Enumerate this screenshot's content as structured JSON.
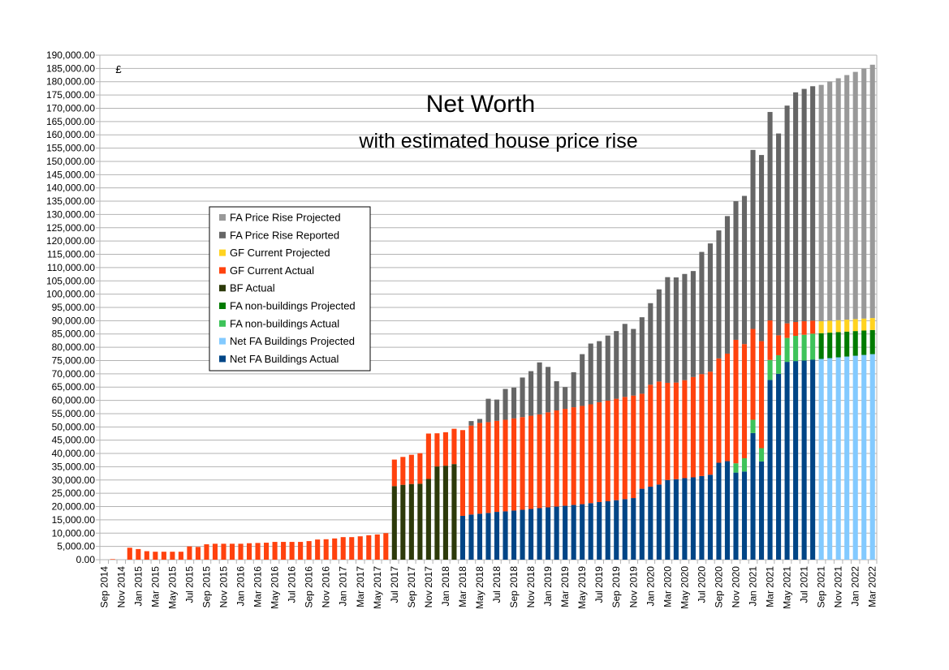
{
  "chart_data": {
    "type": "bar",
    "stacked": true,
    "title": "Net Worth",
    "subtitle": "with estimated house price rise",
    "ylabel": "£",
    "ylim": [
      0,
      190000
    ],
    "ytick_step": 5000,
    "grid": true,
    "legend_position": "left-middle",
    "categories": [
      "Sep 2014",
      "Oct 2014",
      "Nov 2014",
      "Dec 2014",
      "Jan 2015",
      "Feb 2015",
      "Mar 2015",
      "Apr 2015",
      "May 2015",
      "Jun 2015",
      "Jul 2015",
      "Aug 2015",
      "Sep 2015",
      "Oct 2015",
      "Nov 2015",
      "Dec 2015",
      "Jan 2016",
      "Feb 2016",
      "Mar 2016",
      "Apr 2016",
      "May 2016",
      "Jun 2016",
      "Jul 2016",
      "Aug 2016",
      "Sep 2016",
      "Oct 2016",
      "Nov 2016",
      "Dec 2016",
      "Jan 2017",
      "Feb 2017",
      "Mar 2017",
      "Apr 2017",
      "May 2017",
      "Jun 2017",
      "Jul 2017",
      "Aug 2017",
      "Sep 2017",
      "Oct 2017",
      "Nov 2017",
      "Dec 2017",
      "Jan 2018",
      "Feb 2018",
      "Mar 2018",
      "Apr 2018",
      "May 2018",
      "Jun 2018",
      "Jul 2018",
      "Aug 2018",
      "Sep 2018",
      "Oct 2018",
      "Nov 2018",
      "Dec 2018",
      "Jan 2019",
      "Feb 2019",
      "Mar 2019",
      "Apr 2019",
      "May 2019",
      "Jun 2019",
      "Jul 2019",
      "Aug 2019",
      "Sep 2019",
      "Oct 2019",
      "Nov 2019",
      "Dec 2019",
      "Jan 2020",
      "Feb 2020",
      "Mar 2020",
      "Apr 2020",
      "May 2020",
      "Jun 2020",
      "Jul 2020",
      "Aug 2020",
      "Sep 2020",
      "Oct 2020",
      "Nov 2020",
      "Dec 2020",
      "Jan 2021",
      "Feb 2021",
      "Mar 2021",
      "Apr 2021",
      "May 2021",
      "Jun 2021",
      "Jul 2021",
      "Aug 2021",
      "Sep 2021",
      "Oct 2021",
      "Nov 2021",
      "Dec 2021",
      "Jan 2022",
      "Feb 2022",
      "Mar 2022"
    ],
    "series": [
      {
        "name": "Net FA Buildings Actual",
        "color": "#004586",
        "values": [
          0,
          0,
          0,
          0,
          0,
          0,
          0,
          0,
          0,
          0,
          0,
          0,
          0,
          0,
          0,
          0,
          0,
          0,
          0,
          0,
          0,
          0,
          0,
          0,
          0,
          0,
          0,
          0,
          0,
          0,
          0,
          0,
          0,
          0,
          0,
          0,
          0,
          0,
          0,
          0,
          0,
          0,
          16500,
          17000,
          17300,
          17600,
          18000,
          18200,
          18500,
          18800,
          19100,
          19400,
          19700,
          20000,
          20300,
          20600,
          20900,
          21300,
          21700,
          22000,
          22400,
          22800,
          23200,
          26700,
          27500,
          28300,
          30000,
          30300,
          30700,
          31000,
          31500,
          32000,
          36500,
          37100,
          32800,
          33200,
          47700,
          37000,
          67700,
          70000,
          74500,
          74800,
          75000,
          75300,
          0,
          0,
          0,
          0,
          0,
          0,
          0
        ]
      },
      {
        "name": "Net FA Buildings Projected",
        "color": "#83caff",
        "values": [
          0,
          0,
          0,
          0,
          0,
          0,
          0,
          0,
          0,
          0,
          0,
          0,
          0,
          0,
          0,
          0,
          0,
          0,
          0,
          0,
          0,
          0,
          0,
          0,
          0,
          0,
          0,
          0,
          0,
          0,
          0,
          0,
          0,
          0,
          0,
          0,
          0,
          0,
          0,
          0,
          0,
          0,
          0,
          0,
          0,
          0,
          0,
          0,
          0,
          0,
          0,
          0,
          0,
          0,
          0,
          0,
          0,
          0,
          0,
          0,
          0,
          0,
          0,
          0,
          0,
          0,
          0,
          0,
          0,
          0,
          0,
          0,
          0,
          0,
          0,
          0,
          0,
          0,
          0,
          0,
          0,
          0,
          0,
          0,
          75600,
          75900,
          76200,
          76500,
          76800,
          77100,
          77400
        ]
      },
      {
        "name": "FA non-buildings Actual",
        "color": "#3ec35a",
        "values": [
          0,
          0,
          0,
          0,
          0,
          0,
          0,
          0,
          0,
          0,
          0,
          0,
          0,
          0,
          0,
          0,
          0,
          0,
          0,
          0,
          0,
          0,
          0,
          0,
          0,
          0,
          0,
          0,
          0,
          0,
          0,
          0,
          0,
          0,
          0,
          0,
          0,
          0,
          0,
          0,
          0,
          0,
          0,
          0,
          0,
          0,
          0,
          0,
          0,
          0,
          0,
          0,
          0,
          0,
          0,
          0,
          0,
          0,
          0,
          0,
          0,
          0,
          0,
          0,
          0,
          0,
          0,
          0,
          0,
          0,
          0,
          0,
          0,
          0,
          3500,
          5000,
          5000,
          5000,
          7500,
          7000,
          9000,
          9500,
          9700,
          9800,
          0,
          0,
          0,
          0,
          0,
          0,
          0
        ]
      },
      {
        "name": "FA non-buildings Projected",
        "color": "#007b00",
        "values": [
          0,
          0,
          0,
          0,
          0,
          0,
          0,
          0,
          0,
          0,
          0,
          0,
          0,
          0,
          0,
          0,
          0,
          0,
          0,
          0,
          0,
          0,
          0,
          0,
          0,
          0,
          0,
          0,
          0,
          0,
          0,
          0,
          0,
          0,
          0,
          0,
          0,
          0,
          0,
          0,
          0,
          0,
          0,
          0,
          0,
          0,
          0,
          0,
          0,
          0,
          0,
          0,
          0,
          0,
          0,
          0,
          0,
          0,
          0,
          0,
          0,
          0,
          0,
          0,
          0,
          0,
          0,
          0,
          0,
          0,
          0,
          0,
          0,
          0,
          0,
          0,
          0,
          0,
          0,
          0,
          0,
          0,
          0,
          0,
          9700,
          9600,
          9500,
          9400,
          9300,
          9200,
          9100
        ]
      },
      {
        "name": "BF Actual",
        "color": "#2d3a0a",
        "values": [
          0,
          0,
          0,
          0,
          0,
          0,
          0,
          0,
          0,
          0,
          0,
          0,
          0,
          0,
          0,
          0,
          0,
          0,
          0,
          0,
          0,
          0,
          0,
          0,
          0,
          0,
          0,
          0,
          0,
          0,
          0,
          0,
          0,
          0,
          27700,
          28200,
          28500,
          28600,
          30400,
          35100,
          35400,
          36000,
          0,
          0,
          0,
          0,
          0,
          0,
          0,
          0,
          0,
          0,
          0,
          0,
          0,
          0,
          0,
          0,
          0,
          0,
          0,
          0,
          0,
          0,
          0,
          0,
          0,
          0,
          0,
          0,
          0,
          0,
          0,
          0,
          0,
          0,
          0,
          0,
          0,
          0,
          0,
          0,
          0,
          0,
          0,
          0,
          0,
          0,
          0,
          0,
          0
        ]
      },
      {
        "name": "GF Current Actual",
        "color": "#ff420e",
        "values": [
          0,
          200,
          0,
          4500,
          4000,
          3200,
          3000,
          3000,
          3000,
          3000,
          5000,
          4800,
          5800,
          6000,
          6000,
          6000,
          6000,
          6200,
          6300,
          6400,
          6700,
          6700,
          6700,
          6700,
          7000,
          7600,
          7700,
          8000,
          8500,
          8500,
          8800,
          9200,
          9500,
          10000,
          10000,
          10500,
          11000,
          11500,
          17100,
          12500,
          12600,
          13300,
          32300,
          33500,
          34200,
          34200,
          34300,
          34500,
          34700,
          34900,
          35100,
          35300,
          35800,
          36200,
          36500,
          36800,
          37000,
          37200,
          37600,
          37900,
          38200,
          38500,
          38600,
          35800,
          38400,
          38800,
          36600,
          36400,
          36900,
          37800,
          38400,
          38800,
          39300,
          40500,
          46500,
          43000,
          34200,
          40300,
          14900,
          7500,
          5500,
          5200,
          5100,
          4900,
          0,
          0,
          0,
          0,
          0,
          0,
          0
        ]
      },
      {
        "name": "GF Current Projected",
        "color": "#ffd320",
        "values": [
          0,
          0,
          0,
          0,
          0,
          0,
          0,
          0,
          0,
          0,
          0,
          0,
          0,
          0,
          0,
          0,
          0,
          0,
          0,
          0,
          0,
          0,
          0,
          0,
          0,
          0,
          0,
          0,
          0,
          0,
          0,
          0,
          0,
          0,
          0,
          0,
          0,
          0,
          0,
          0,
          0,
          0,
          0,
          0,
          0,
          0,
          0,
          0,
          0,
          0,
          0,
          0,
          0,
          0,
          0,
          0,
          0,
          0,
          0,
          0,
          0,
          0,
          0,
          0,
          0,
          0,
          0,
          0,
          0,
          0,
          0,
          0,
          0,
          0,
          0,
          0,
          0,
          0,
          0,
          0,
          0,
          0,
          0,
          0,
          4500,
          4500,
          4500,
          4500,
          4500,
          4500,
          4500
        ]
      },
      {
        "name": "FA Price Rise Reported",
        "color": "#666666",
        "values": [
          0,
          0,
          0,
          0,
          0,
          0,
          0,
          0,
          0,
          0,
          0,
          0,
          0,
          0,
          0,
          0,
          0,
          0,
          0,
          0,
          0,
          0,
          0,
          0,
          0,
          0,
          0,
          0,
          0,
          0,
          0,
          0,
          0,
          0,
          0,
          0,
          0,
          0,
          0,
          0,
          0,
          0,
          0,
          1700,
          1500,
          8800,
          8000,
          11600,
          11600,
          14900,
          16800,
          19600,
          17100,
          11000,
          8200,
          13200,
          19500,
          22900,
          23000,
          24500,
          25500,
          27500,
          25100,
          28800,
          30700,
          34700,
          39800,
          39600,
          40000,
          39900,
          46000,
          48300,
          48200,
          51800,
          52200,
          55800,
          67400,
          70100,
          78500,
          76000,
          82000,
          86500,
          87500,
          88300,
          0,
          0,
          0,
          0,
          0,
          0,
          0
        ]
      },
      {
        "name": "FA Price Rise Projected",
        "color": "#999999",
        "values": [
          0,
          0,
          0,
          0,
          0,
          0,
          0,
          0,
          0,
          0,
          0,
          0,
          0,
          0,
          0,
          0,
          0,
          0,
          0,
          0,
          0,
          0,
          0,
          0,
          0,
          0,
          0,
          0,
          0,
          0,
          0,
          0,
          0,
          0,
          0,
          0,
          0,
          0,
          0,
          0,
          0,
          0,
          0,
          0,
          0,
          0,
          0,
          0,
          0,
          0,
          0,
          0,
          0,
          0,
          0,
          0,
          0,
          0,
          0,
          0,
          0,
          0,
          0,
          0,
          0,
          0,
          0,
          0,
          0,
          0,
          0,
          0,
          0,
          0,
          0,
          0,
          0,
          0,
          0,
          0,
          0,
          0,
          0,
          0,
          89000,
          90100,
          91100,
          92100,
          93100,
          94100,
          95400
        ]
      }
    ],
    "legend_order": [
      "FA Price Rise Projected",
      "FA Price Rise Reported",
      "GF Current Projected",
      "GF Current Actual",
      "BF Actual",
      "FA non-buildings Projected",
      "FA non-buildings Actual",
      "Net FA Buildings Projected",
      "Net FA Buildings Actual"
    ]
  }
}
